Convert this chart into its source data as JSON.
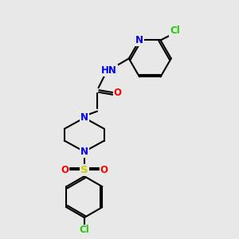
{
  "bg_color": "#e8e8e8",
  "bond_color": "#000000",
  "colors": {
    "N": "#0000ee",
    "O": "#ff0000",
    "S": "#cccc00",
    "Cl": "#22cc00",
    "H": "#888888",
    "C": "#000000"
  },
  "lw": 1.5,
  "fontsize": 8.5
}
